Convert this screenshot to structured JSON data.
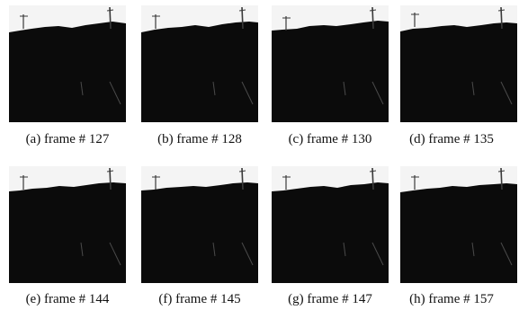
{
  "panels": [
    {
      "caption": "(a) frame # 127"
    },
    {
      "caption": "(b) frame # 128"
    },
    {
      "caption": "(c) frame # 130"
    },
    {
      "caption": "(d) frame # 135"
    },
    {
      "caption": "(e) frame # 144"
    },
    {
      "caption": "(f) frame # 145"
    },
    {
      "caption": "(g) frame # 147"
    },
    {
      "caption": "(h) frame # 157"
    }
  ],
  "colors": {
    "sky": "#f4f4f4",
    "ground": "#0b0b0b",
    "pole": "#3a3a3a",
    "road_mark": "#4a4a4a"
  }
}
